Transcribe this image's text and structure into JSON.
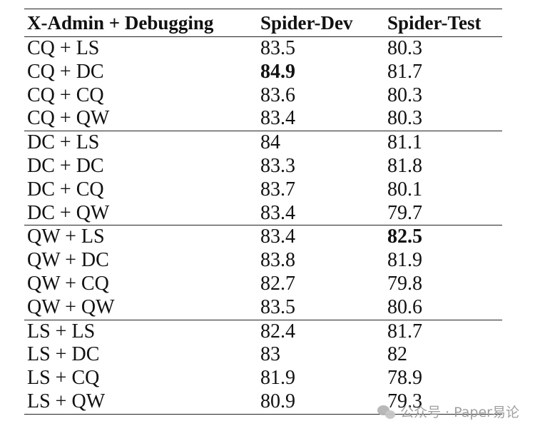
{
  "table": {
    "headers": [
      "X-Admin + Debugging",
      "Spider-Dev",
      "Spider-Test"
    ],
    "groups": [
      [
        {
          "config": "CQ + LS",
          "dev": "83.5",
          "test": "80.3"
        },
        {
          "config": "CQ + DC",
          "dev": "84.9",
          "test": "81.7",
          "bold_dev": true
        },
        {
          "config": "CQ + CQ",
          "dev": "83.6",
          "test": "80.3"
        },
        {
          "config": "CQ + QW",
          "dev": "83.4",
          "test": "80.3"
        }
      ],
      [
        {
          "config": "DC + LS",
          "dev": "84",
          "test": "81.1"
        },
        {
          "config": "DC + DC",
          "dev": "83.3",
          "test": "81.8"
        },
        {
          "config": "DC + CQ",
          "dev": "83.7",
          "test": "80.1"
        },
        {
          "config": "DC + QW",
          "dev": "83.4",
          "test": "79.7"
        }
      ],
      [
        {
          "config": "QW + LS",
          "dev": "83.4",
          "test": "82.5",
          "bold_test": true
        },
        {
          "config": "QW + DC",
          "dev": "83.8",
          "test": "81.9"
        },
        {
          "config": "QW + CQ",
          "dev": "82.7",
          "test": "79.8"
        },
        {
          "config": "QW + QW",
          "dev": "83.5",
          "test": "80.6"
        }
      ],
      [
        {
          "config": "LS + LS",
          "dev": "82.4",
          "test": "81.7"
        },
        {
          "config": "LS + DC",
          "dev": "83",
          "test": "82"
        },
        {
          "config": "LS + CQ",
          "dev": "81.9",
          "test": "78.9"
        },
        {
          "config": "LS + QW",
          "dev": "80.9",
          "test": "79.3"
        }
      ]
    ]
  },
  "watermark": {
    "text": "公众号 · Paper易论",
    "icon": "wechat-icon"
  }
}
